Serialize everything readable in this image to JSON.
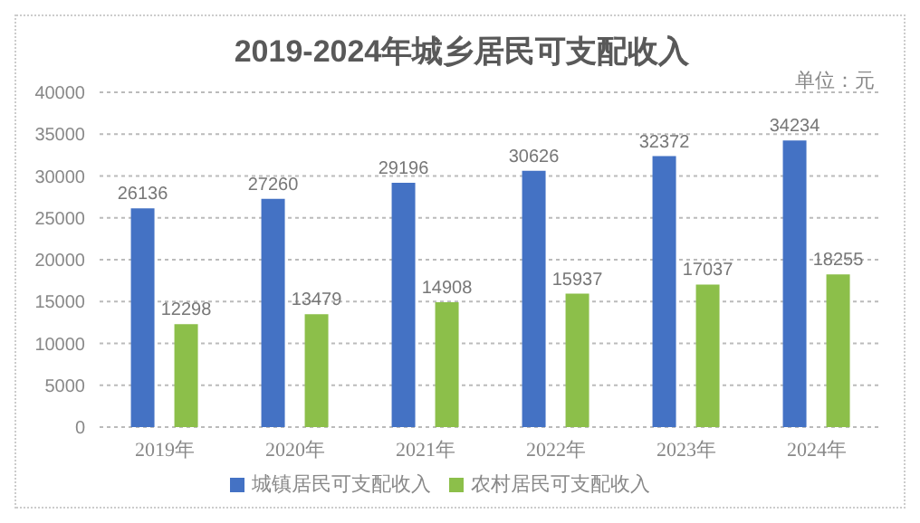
{
  "chart_data": {
    "type": "bar",
    "title": "2019-2024年城乡居民可支配收入",
    "annotations": [
      "单位：元"
    ],
    "categories": [
      "2019年",
      "2020年",
      "2021年",
      "2022年",
      "2023年",
      "2024年"
    ],
    "series": [
      {
        "name": "城镇居民可支配收入",
        "color": "#4472c4",
        "values": [
          26136,
          27260,
          29196,
          30626,
          32372,
          34234
        ]
      },
      {
        "name": "农村居民可支配收入",
        "color": "#8cbf4a",
        "values": [
          12298,
          13479,
          14908,
          15937,
          17037,
          18255
        ]
      }
    ],
    "ylim": [
      0,
      40000
    ],
    "yticks": [
      0,
      5000,
      10000,
      15000,
      20000,
      25000,
      30000,
      35000,
      40000
    ],
    "grid": "y",
    "legend": "bottom",
    "data_labels": true
  }
}
